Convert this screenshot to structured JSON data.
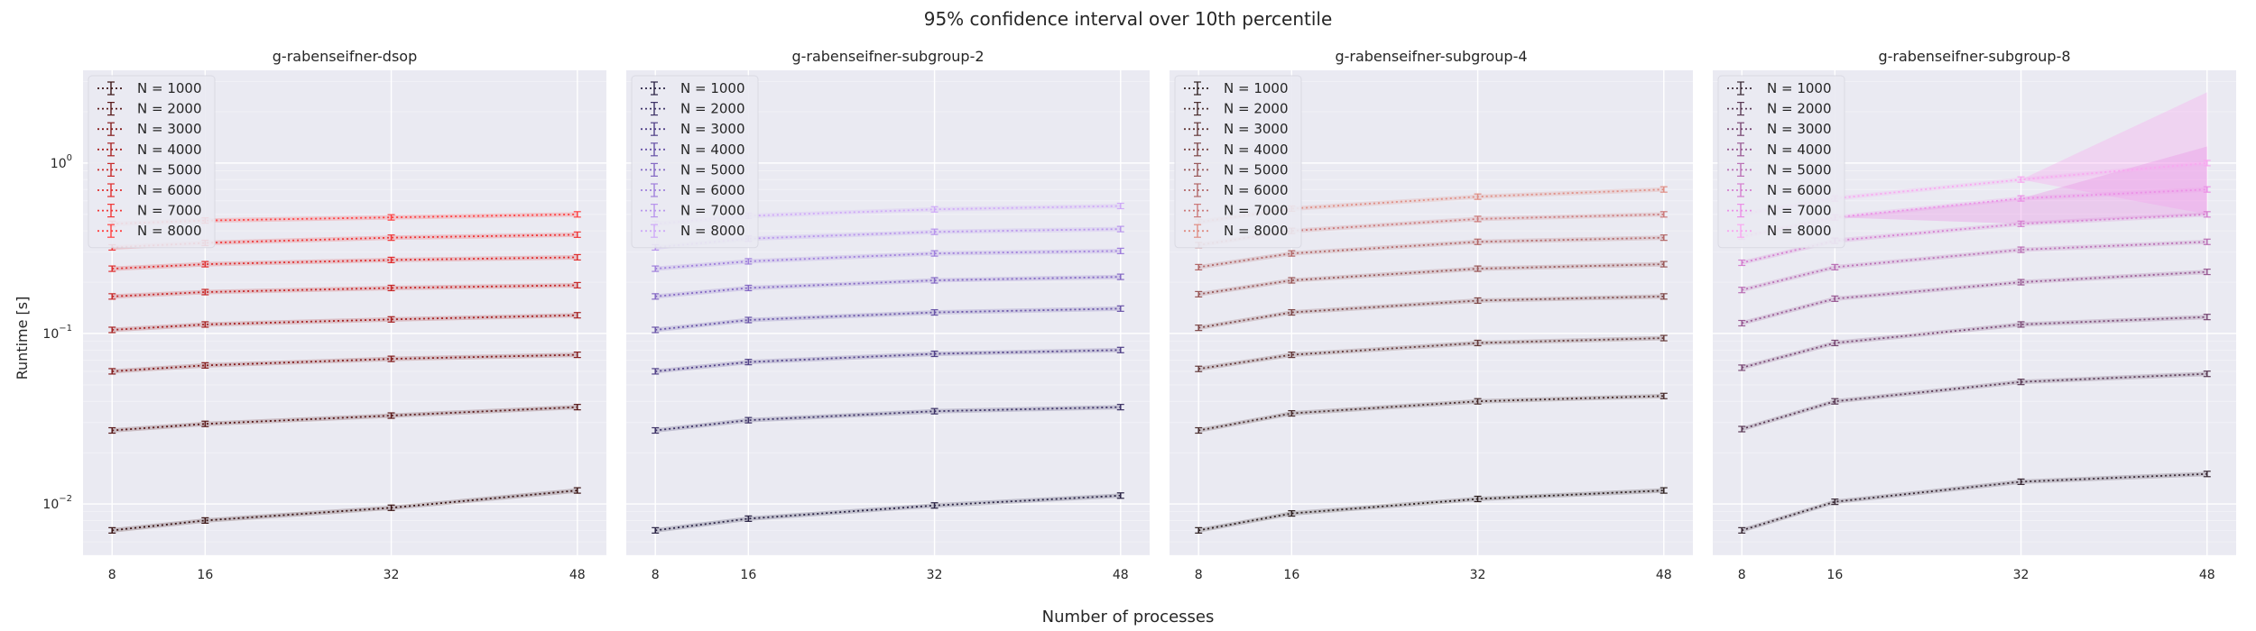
{
  "suptitle": "95% confidence interval over 10th percentile",
  "xlabel": "Number of processes",
  "ylabel": "Runtime [s]",
  "legend_labels": [
    "N = 1000",
    "N = 2000",
    "N = 3000",
    "N = 4000",
    "N = 5000",
    "N = 6000",
    "N = 7000",
    "N = 8000"
  ],
  "y_tick_labels": [
    {
      "value": 0.01,
      "base": "10",
      "exp": "−2"
    },
    {
      "value": 0.1,
      "base": "10",
      "exp": "−1"
    },
    {
      "value": 1,
      "base": "10",
      "exp": "0"
    }
  ],
  "x_tick_labels": [
    "8",
    "16",
    "32",
    "48"
  ],
  "chart_data": [
    {
      "type": "line",
      "title": "g-rabenseifner-dsop",
      "x": [
        8,
        16,
        32,
        48
      ],
      "ylim": [
        0.005,
        3.5
      ],
      "yscale": "log",
      "grid": true,
      "legend": "upper-left",
      "colors": [
        "#3a1414",
        "#5a1a1a",
        "#851f1f",
        "#a82424",
        "#c82a2a",
        "#e03030",
        "#f03a3a",
        "#ff4444"
      ],
      "series": [
        {
          "name": "N = 1000",
          "values": [
            0.007,
            0.008,
            0.0095,
            0.012
          ]
        },
        {
          "name": "N = 2000",
          "values": [
            0.027,
            0.0295,
            0.033,
            0.037
          ]
        },
        {
          "name": "N = 3000",
          "values": [
            0.06,
            0.065,
            0.071,
            0.075
          ]
        },
        {
          "name": "N = 4000",
          "values": [
            0.105,
            0.113,
            0.121,
            0.128
          ]
        },
        {
          "name": "N = 5000",
          "values": [
            0.165,
            0.175,
            0.185,
            0.192
          ]
        },
        {
          "name": "N = 6000",
          "values": [
            0.24,
            0.255,
            0.27,
            0.28
          ]
        },
        {
          "name": "N = 7000",
          "values": [
            0.32,
            0.34,
            0.365,
            0.38
          ]
        },
        {
          "name": "N = 8000",
          "values": [
            0.44,
            0.46,
            0.48,
            0.5
          ]
        }
      ]
    },
    {
      "type": "line",
      "title": "g-rabenseifner-subgroup-2",
      "x": [
        8,
        16,
        32,
        48
      ],
      "ylim": [
        0.005,
        3.5
      ],
      "yscale": "log",
      "grid": true,
      "legend": "upper-left",
      "colors": [
        "#2a2344",
        "#3d3266",
        "#524288",
        "#6a55a8",
        "#8569c4",
        "#a080dc",
        "#b895ec",
        "#cfaaf8"
      ],
      "series": [
        {
          "name": "N = 1000",
          "values": [
            0.007,
            0.0082,
            0.0098,
            0.0112
          ]
        },
        {
          "name": "N = 2000",
          "values": [
            0.027,
            0.031,
            0.035,
            0.037
          ]
        },
        {
          "name": "N = 3000",
          "values": [
            0.06,
            0.068,
            0.076,
            0.08
          ]
        },
        {
          "name": "N = 4000",
          "values": [
            0.105,
            0.12,
            0.133,
            0.14
          ]
        },
        {
          "name": "N = 5000",
          "values": [
            0.165,
            0.185,
            0.205,
            0.215
          ]
        },
        {
          "name": "N = 6000",
          "values": [
            0.24,
            0.265,
            0.295,
            0.305
          ]
        },
        {
          "name": "N = 7000",
          "values": [
            0.32,
            0.36,
            0.395,
            0.41
          ]
        },
        {
          "name": "N = 8000",
          "values": [
            0.44,
            0.49,
            0.535,
            0.56
          ]
        }
      ]
    },
    {
      "type": "line",
      "title": "g-rabenseifner-subgroup-4",
      "x": [
        8,
        16,
        32,
        48
      ],
      "ylim": [
        0.005,
        3.5
      ],
      "yscale": "log",
      "grid": true,
      "legend": "upper-left",
      "colors": [
        "#2e2020",
        "#4a2e2e",
        "#653b3b",
        "#7e4848",
        "#995858",
        "#b36868",
        "#cc7a7a",
        "#e08e84"
      ],
      "series": [
        {
          "name": "N = 1000",
          "values": [
            0.007,
            0.0088,
            0.0107,
            0.012
          ]
        },
        {
          "name": "N = 2000",
          "values": [
            0.027,
            0.034,
            0.04,
            0.043
          ]
        },
        {
          "name": "N = 3000",
          "values": [
            0.062,
            0.075,
            0.088,
            0.094
          ]
        },
        {
          "name": "N = 4000",
          "values": [
            0.108,
            0.133,
            0.156,
            0.165
          ]
        },
        {
          "name": "N = 5000",
          "values": [
            0.17,
            0.205,
            0.24,
            0.255
          ]
        },
        {
          "name": "N = 6000",
          "values": [
            0.245,
            0.295,
            0.345,
            0.365
          ]
        },
        {
          "name": "N = 7000",
          "values": [
            0.33,
            0.4,
            0.47,
            0.5
          ]
        },
        {
          "name": "N = 8000",
          "values": [
            0.45,
            0.54,
            0.635,
            0.7
          ]
        }
      ]
    },
    {
      "type": "line",
      "title": "g-rabenseifner-subgroup-8",
      "x": [
        8,
        16,
        32,
        48
      ],
      "ylim": [
        0.005,
        3.5
      ],
      "yscale": "log",
      "grid": true,
      "legend": "upper-left",
      "colors": [
        "#3a2a36",
        "#5a3a55",
        "#7a4a75",
        "#9a5c95",
        "#ba70b5",
        "#d580d0",
        "#eb90e6",
        "#f8a8f0"
      ],
      "series": [
        {
          "name": "N = 1000",
          "values": [
            0.007,
            0.0103,
            0.0135,
            0.015
          ]
        },
        {
          "name": "N = 2000",
          "values": [
            0.0275,
            0.04,
            0.052,
            0.058
          ]
        },
        {
          "name": "N = 3000",
          "values": [
            0.063,
            0.088,
            0.113,
            0.125
          ]
        },
        {
          "name": "N = 4000",
          "values": [
            0.115,
            0.16,
            0.2,
            0.23
          ]
        },
        {
          "name": "N = 5000",
          "values": [
            0.18,
            0.245,
            0.31,
            0.345
          ]
        },
        {
          "name": "N = 6000",
          "values": [
            0.26,
            0.35,
            0.44,
            0.5
          ]
        },
        {
          "name": "N = 7000",
          "values": [
            0.37,
            0.48,
            0.62,
            0.7
          ]
        },
        {
          "name": "N = 8000",
          "values": [
            0.5,
            0.62,
            0.8,
            1.0
          ]
        }
      ]
    }
  ]
}
